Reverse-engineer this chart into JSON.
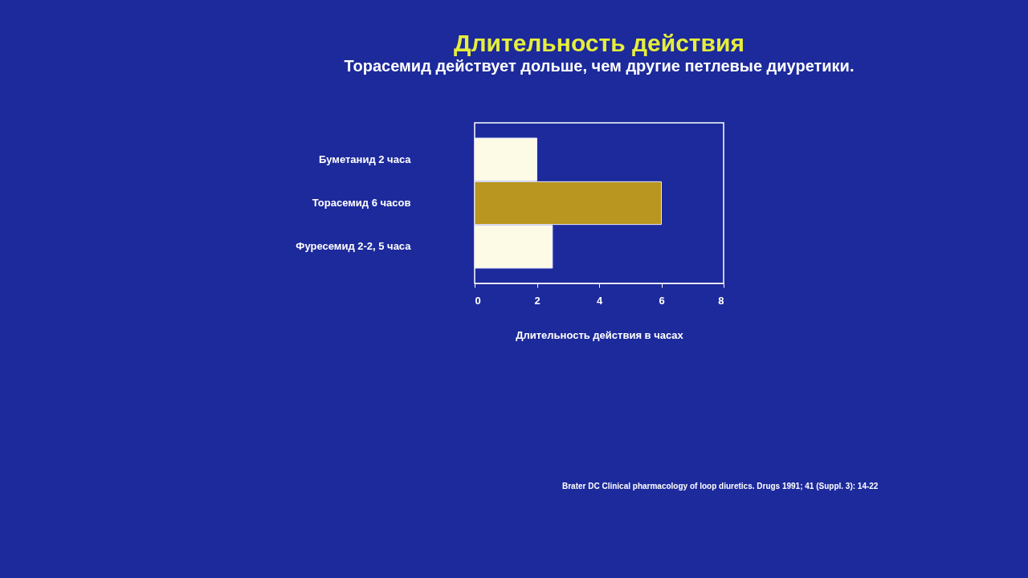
{
  "chart_data": {
    "type": "bar",
    "orientation": "horizontal",
    "title": "Длительность действия",
    "subtitle": "Торасемид  действует дольше, чем другие петлевые диуретики.",
    "categories": [
      "Буметанид 2 часа",
      "Торасемид 6 часов",
      "Фуресемид  2-2, 5  часа"
    ],
    "values": [
      2,
      6,
      2.5
    ],
    "colors": [
      "#fdfbe6",
      "#b8961f",
      "#fdfbe6"
    ],
    "xlabel": "Длительность действия  в  часах",
    "xlim": [
      0,
      8
    ],
    "xticks": [
      0,
      2,
      4,
      6,
      8
    ],
    "grid": false,
    "annotations": [
      "Brater DC Clinical pharmacology of loop diuretics. Drugs 1991; 41 (Suppl. 3): 14-22"
    ]
  }
}
